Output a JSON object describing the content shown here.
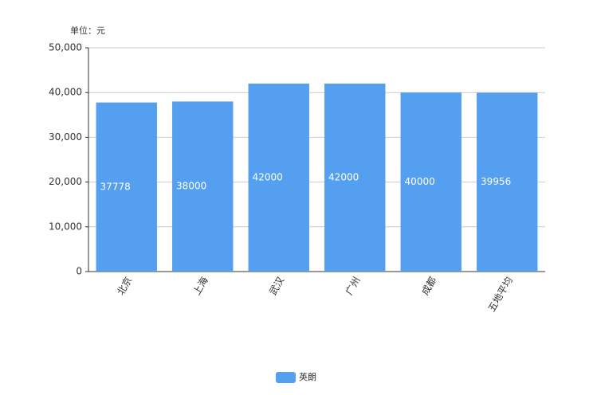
{
  "chart_data": {
    "type": "bar",
    "title": "单位：元",
    "categories": [
      "北京",
      "上海",
      "武汉",
      "广州",
      "成都",
      "五地平均"
    ],
    "series": [
      {
        "name": "英朗",
        "color": "#559ff0",
        "values": [
          37778,
          38000,
          42000,
          42000,
          40000,
          39956
        ]
      }
    ],
    "ylim": [
      0,
      50000
    ],
    "yticks": [
      0,
      {
        "value": 10000,
        "label": "10,000"
      },
      {
        "value": 20000,
        "label": "20,000"
      },
      {
        "value": 30000,
        "label": "30,000"
      },
      {
        "value": 40000,
        "label": "40,000"
      },
      {
        "value": 50000,
        "label": "50,000"
      }
    ],
    "grid": true,
    "legend": "bottom"
  }
}
